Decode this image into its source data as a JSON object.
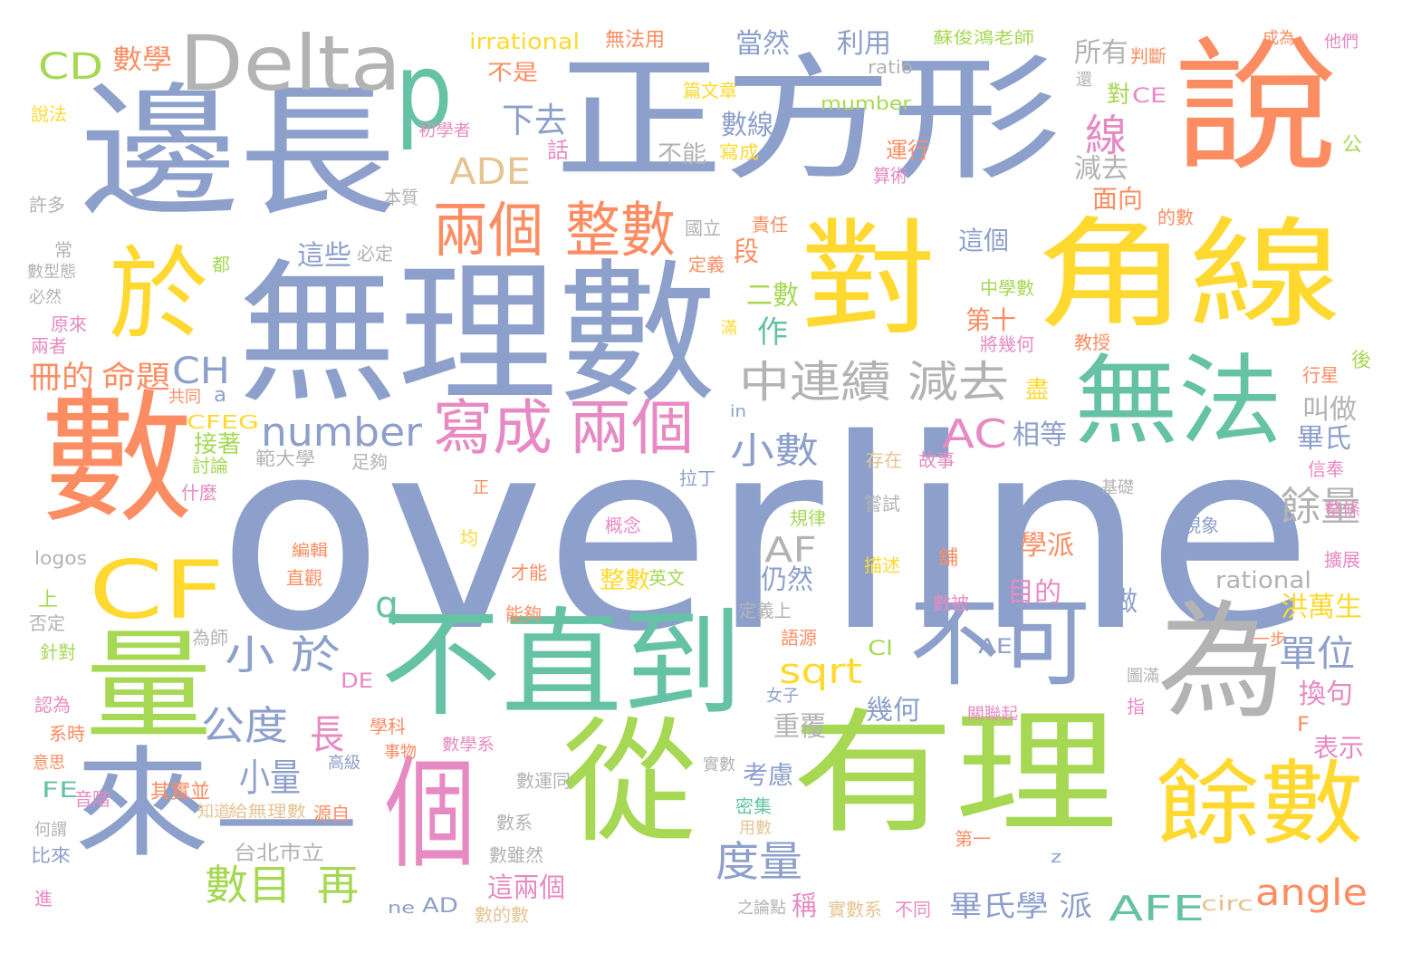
{
  "palette": {
    "blue": "#8da0cb",
    "green": "#a6d854",
    "yellow": "#ffd92f",
    "orange": "#fc8d62",
    "pink": "#e78ac3",
    "teal": "#66c2a5",
    "tan": "#e5c494",
    "gray": "#b3b3b3"
  },
  "words": [
    {
      "text": "overline",
      "color": "blue"
    },
    {
      "text": "無理數",
      "color": "blue"
    },
    {
      "text": "正方形",
      "color": "blue"
    },
    {
      "text": "邊長",
      "color": "blue"
    },
    {
      "text": "角線",
      "color": "yellow"
    },
    {
      "text": "對",
      "color": "yellow"
    },
    {
      "text": "說",
      "color": "orange"
    },
    {
      "text": "數",
      "color": "orange"
    },
    {
      "text": "有理",
      "color": "green"
    },
    {
      "text": "從",
      "color": "green"
    },
    {
      "text": "不直到",
      "color": "teal"
    },
    {
      "text": "個",
      "color": "pink"
    },
    {
      "text": "一",
      "color": "blue"
    },
    {
      "text": "來",
      "color": "blue"
    },
    {
      "text": "量",
      "color": "green"
    },
    {
      "text": "於",
      "color": "yellow"
    },
    {
      "text": "為",
      "color": "gray"
    },
    {
      "text": "Delta",
      "color": "gray"
    },
    {
      "text": "p",
      "color": "teal"
    },
    {
      "text": "無法",
      "color": "teal"
    },
    {
      "text": "餘數",
      "color": "yellow"
    },
    {
      "text": "不可",
      "color": "blue"
    },
    {
      "text": "CF",
      "color": "yellow"
    },
    {
      "text": "兩個",
      "color": "orange"
    },
    {
      "text": "整數",
      "color": "orange"
    },
    {
      "text": "寫成",
      "color": "pink"
    },
    {
      "text": "兩個",
      "color": "pink"
    },
    {
      "text": "中連續 減去",
      "color": "gray"
    },
    {
      "text": "number",
      "color": "blue"
    },
    {
      "text": "AC",
      "color": "pink"
    },
    {
      "text": "ADE",
      "color": "tan"
    },
    {
      "text": "下去",
      "color": "blue"
    },
    {
      "text": "小 於",
      "color": "blue"
    },
    {
      "text": "公度",
      "color": "blue"
    },
    {
      "text": "小量",
      "color": "blue"
    },
    {
      "text": "數目",
      "color": "green"
    },
    {
      "text": "再",
      "color": "green"
    },
    {
      "text": "度量",
      "color": "blue"
    },
    {
      "text": "CD",
      "color": "green"
    },
    {
      "text": "數學",
      "color": "orange"
    },
    {
      "text": "irrational",
      "color": "yellow"
    },
    {
      "text": "無法用",
      "color": "orange"
    },
    {
      "text": "當然",
      "color": "blue"
    },
    {
      "text": "利用",
      "color": "blue"
    },
    {
      "text": "蘇俊鴻老師",
      "color": "green"
    },
    {
      "text": "成為",
      "color": "orange"
    },
    {
      "text": "他們",
      "color": "pink"
    },
    {
      "text": "所有",
      "color": "gray"
    },
    {
      "text": "判斷",
      "color": "orange"
    },
    {
      "text": "不是",
      "color": "orange"
    },
    {
      "text": "ratio",
      "color": "gray"
    },
    {
      "text": "mumber",
      "color": "green"
    },
    {
      "text": "CE",
      "color": "pink"
    },
    {
      "text": "說法",
      "color": "yellow"
    },
    {
      "text": "線",
      "color": "pink"
    },
    {
      "text": "數線",
      "color": "blue"
    },
    {
      "text": "不能",
      "color": "gray"
    },
    {
      "text": "寫成",
      "color": "yellow"
    },
    {
      "text": "運行",
      "color": "orange"
    },
    {
      "text": "算術",
      "color": "pink"
    },
    {
      "text": "減去",
      "color": "gray"
    },
    {
      "text": "面向",
      "color": "orange"
    },
    {
      "text": "許多",
      "color": "gray"
    },
    {
      "text": "本質",
      "color": "gray"
    },
    {
      "text": "國立",
      "color": "gray"
    },
    {
      "text": "責任",
      "color": "orange"
    },
    {
      "text": "的數",
      "color": "orange"
    },
    {
      "text": "這個",
      "color": "blue"
    },
    {
      "text": "這些",
      "color": "blue"
    },
    {
      "text": "必定",
      "color": "gray"
    },
    {
      "text": "定義",
      "color": "orange"
    },
    {
      "text": "段",
      "color": "orange"
    },
    {
      "text": "中學數",
      "color": "green"
    },
    {
      "text": "作",
      "color": "teal"
    },
    {
      "text": "二數",
      "color": "green"
    },
    {
      "text": "第十",
      "color": "orange"
    },
    {
      "text": "冊的",
      "color": "orange"
    },
    {
      "text": "命題",
      "color": "orange"
    },
    {
      "text": "CH",
      "color": "blue"
    },
    {
      "text": "共同",
      "color": "orange"
    },
    {
      "text": "a",
      "color": "blue"
    },
    {
      "text": "小數",
      "color": "blue"
    },
    {
      "text": "相等",
      "color": "blue"
    },
    {
      "text": "叫做",
      "color": "gray"
    },
    {
      "text": "畢氏",
      "color": "blue"
    },
    {
      "text": "信奉",
      "color": "pink"
    },
    {
      "text": "餘量",
      "color": "gray"
    },
    {
      "text": "AF",
      "color": "gray"
    },
    {
      "text": "q",
      "color": "teal"
    },
    {
      "text": "sqrt",
      "color": "yellow"
    },
    {
      "text": "單位",
      "color": "blue"
    },
    {
      "text": "洪萬生",
      "color": "yellow"
    },
    {
      "text": "rational",
      "color": "gray"
    },
    {
      "text": "目的",
      "color": "pink"
    },
    {
      "text": "學派",
      "color": "orange"
    },
    {
      "text": "仍然",
      "color": "blue"
    },
    {
      "text": "logos",
      "color": "gray"
    },
    {
      "text": "長",
      "color": "pink"
    },
    {
      "text": "幾何",
      "color": "blue"
    },
    {
      "text": "重覆",
      "color": "gray"
    },
    {
      "text": "考慮",
      "color": "blue"
    },
    {
      "text": "換句",
      "color": "pink"
    },
    {
      "text": "表示",
      "color": "pink"
    },
    {
      "text": "angle",
      "color": "orange"
    },
    {
      "text": "AFE",
      "color": "teal"
    },
    {
      "text": "畢氏學 派",
      "color": "blue"
    },
    {
      "text": "稱",
      "color": "pink"
    },
    {
      "text": "實數系",
      "color": "tan"
    },
    {
      "text": "不同",
      "color": "pink"
    },
    {
      "text": "circ",
      "color": "tan"
    },
    {
      "text": "AD",
      "color": "blue"
    },
    {
      "text": "ne",
      "color": "blue"
    },
    {
      "text": "這兩個",
      "color": "pink"
    },
    {
      "text": "數的數",
      "color": "tan"
    },
    {
      "text": "台北市立",
      "color": "gray"
    },
    {
      "text": "比來",
      "color": "blue"
    },
    {
      "text": "進",
      "color": "pink"
    },
    {
      "text": "FE",
      "color": "teal"
    },
    {
      "text": "音階",
      "color": "pink"
    },
    {
      "text": "其實並",
      "color": "orange"
    },
    {
      "text": "知道",
      "color": "tan"
    },
    {
      "text": "給無理數",
      "color": "tan"
    },
    {
      "text": "源自",
      "color": "orange"
    },
    {
      "text": "DE",
      "color": "pink"
    },
    {
      "text": "CFEG",
      "color": "yellow"
    },
    {
      "text": "討論",
      "color": "green"
    },
    {
      "text": "什麼",
      "color": "pink"
    },
    {
      "text": "接著",
      "color": "green"
    },
    {
      "text": "範大學",
      "color": "gray"
    },
    {
      "text": "足夠",
      "color": "gray"
    },
    {
      "text": "拉丁",
      "color": "blue"
    },
    {
      "text": "存在",
      "color": "tan"
    },
    {
      "text": "故事",
      "color": "pink"
    },
    {
      "text": "基礎",
      "color": "gray"
    },
    {
      "text": "現象",
      "color": "blue"
    },
    {
      "text": "整條",
      "color": "pink"
    },
    {
      "text": "擴展",
      "color": "pink"
    },
    {
      "text": "行星",
      "color": "orange"
    },
    {
      "text": "後",
      "color": "green"
    },
    {
      "text": "教授",
      "color": "orange"
    },
    {
      "text": "將幾何",
      "color": "pink"
    },
    {
      "text": "盡",
      "color": "yellow"
    },
    {
      "text": "in",
      "color": "blue"
    },
    {
      "text": "嘗試",
      "color": "gray"
    },
    {
      "text": "概念",
      "color": "pink"
    },
    {
      "text": "規律",
      "color": "green"
    },
    {
      "text": "均",
      "color": "yellow"
    },
    {
      "text": "正",
      "color": "orange"
    },
    {
      "text": "編輯",
      "color": "orange"
    },
    {
      "text": "直觀",
      "color": "orange"
    },
    {
      "text": "才能",
      "color": "orange"
    },
    {
      "text": "整數",
      "color": "yellow"
    },
    {
      "text": "英文",
      "color": "green"
    },
    {
      "text": "描述",
      "color": "yellow"
    },
    {
      "text": "舖",
      "color": "orange"
    },
    {
      "text": "數被",
      "color": "pink"
    },
    {
      "text": "做",
      "color": "blue"
    },
    {
      "text": "定義上",
      "color": "gray"
    },
    {
      "text": "語源",
      "color": "orange"
    },
    {
      "text": "能夠",
      "color": "orange"
    },
    {
      "text": "為師",
      "color": "gray"
    },
    {
      "text": "AE",
      "color": "blue"
    },
    {
      "text": "Cl",
      "color": "green"
    },
    {
      "text": "一步",
      "color": "orange"
    },
    {
      "text": "圖滿",
      "color": "gray"
    },
    {
      "text": "指",
      "color": "pink"
    },
    {
      "text": "關聯起",
      "color": "pink"
    },
    {
      "text": "F",
      "color": "orange"
    },
    {
      "text": "女子",
      "color": "blue"
    },
    {
      "text": "學科",
      "color": "orange"
    },
    {
      "text": "事物",
      "color": "orange"
    },
    {
      "text": "高級",
      "color": "blue"
    },
    {
      "text": "數學系",
      "color": "pink"
    },
    {
      "text": "實數",
      "color": "gray"
    },
    {
      "text": "數運同",
      "color": "gray"
    },
    {
      "text": "密集",
      "color": "teal"
    },
    {
      "text": "用數",
      "color": "tan"
    },
    {
      "text": "數系",
      "color": "gray"
    },
    {
      "text": "第一",
      "color": "orange"
    },
    {
      "text": "數雖然",
      "color": "gray"
    },
    {
      "text": "之論點",
      "color": "gray"
    },
    {
      "text": "z",
      "color": "blue"
    },
    {
      "text": "何謂",
      "color": "gray"
    },
    {
      "text": "意思",
      "color": "orange"
    },
    {
      "text": "系時",
      "color": "orange"
    },
    {
      "text": "認為",
      "color": "pink"
    },
    {
      "text": "針對",
      "color": "green"
    },
    {
      "text": "上",
      "color": "green"
    },
    {
      "text": "否定",
      "color": "gray"
    },
    {
      "text": "數型態",
      "color": "gray"
    },
    {
      "text": "必然",
      "color": "gray"
    },
    {
      "text": "原來",
      "color": "pink"
    },
    {
      "text": "兩者",
      "color": "pink"
    },
    {
      "text": "常",
      "color": "gray"
    },
    {
      "text": "都",
      "color": "green"
    },
    {
      "text": "初學者",
      "color": "pink"
    },
    {
      "text": "篇文章",
      "color": "yellow"
    },
    {
      "text": "話",
      "color": "pink"
    },
    {
      "text": "對",
      "color": "green"
    },
    {
      "text": "還",
      "color": "gray"
    },
    {
      "text": "公",
      "color": "green"
    },
    {
      "text": "滿",
      "color": "yellow"
    }
  ]
}
